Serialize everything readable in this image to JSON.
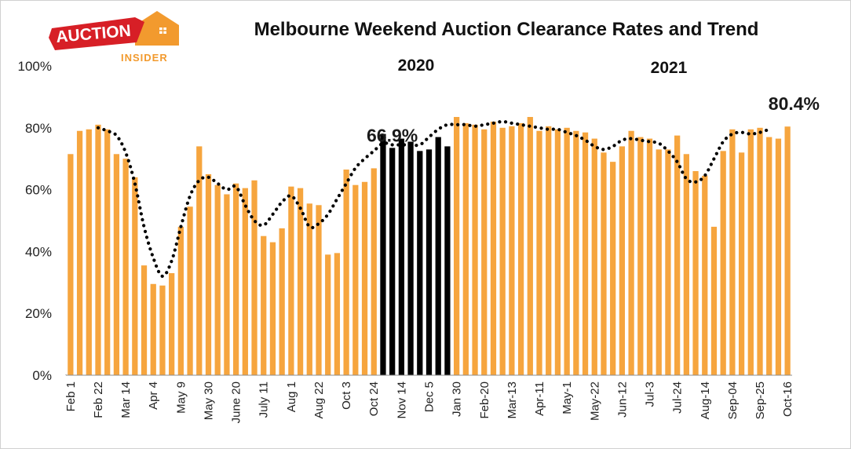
{
  "logo": {
    "word1": "AUCTION",
    "word2": "INSIDER"
  },
  "chart_data": {
    "type": "bar+line",
    "title": "Melbourne Weekend Auction Clearance Rates and Trend",
    "year_labels": [
      "2020",
      "2021"
    ],
    "ylim": [
      0,
      100
    ],
    "yticks": [
      0,
      20,
      40,
      60,
      80,
      100
    ],
    "ytick_labels": [
      "0%",
      "20%",
      "40%",
      "60%",
      "80%",
      "100%"
    ],
    "grid": false,
    "x_tick_labels": [
      {
        "i": 0,
        "label": "Feb 1"
      },
      {
        "i": 3,
        "label": "Feb 22"
      },
      {
        "i": 6,
        "label": "Mar 14"
      },
      {
        "i": 9,
        "label": "Apr 4"
      },
      {
        "i": 12,
        "label": "May 9"
      },
      {
        "i": 15,
        "label": "May 30"
      },
      {
        "i": 18,
        "label": "June 20"
      },
      {
        "i": 21,
        "label": "July 11"
      },
      {
        "i": 24,
        "label": "Aug 1"
      },
      {
        "i": 27,
        "label": "Aug 22"
      },
      {
        "i": 30,
        "label": "Oct 3"
      },
      {
        "i": 33,
        "label": "Oct 24"
      },
      {
        "i": 36,
        "label": "Nov 14"
      },
      {
        "i": 39,
        "label": "Dec 5"
      },
      {
        "i": 42,
        "label": "Jan 30"
      },
      {
        "i": 45,
        "label": "Feb-20"
      },
      {
        "i": 48,
        "label": "Mar-13"
      },
      {
        "i": 51,
        "label": "Apr-11"
      },
      {
        "i": 54,
        "label": "May-1"
      },
      {
        "i": 57,
        "label": "May-22"
      },
      {
        "i": 60,
        "label": "Jun-12"
      },
      {
        "i": 63,
        "label": "Jul-3"
      },
      {
        "i": 66,
        "label": "Jul-24"
      },
      {
        "i": 69,
        "label": "Aug-14"
      },
      {
        "i": 72,
        "label": "Sep-04"
      },
      {
        "i": 75,
        "label": "Sep-25"
      },
      {
        "i": 78,
        "label": "Oct-16"
      }
    ],
    "series": [
      {
        "name": "Clearance rate",
        "style": "bar",
        "colors": {
          "default": "#F6A53E",
          "highlight": "#000000"
        },
        "highlight_range": [
          34,
          41
        ],
        "values": [
          71.5,
          79,
          79.5,
          81,
          79.5,
          71.5,
          70,
          64,
          35.5,
          29.5,
          29,
          33,
          48,
          54.5,
          74,
          65,
          61.5,
          58.5,
          62,
          60.5,
          63,
          45,
          43,
          47.5,
          61,
          60.5,
          55.5,
          55,
          39,
          39.5,
          66.5,
          61.5,
          62.5,
          66.9,
          78,
          73.5,
          76.5,
          75.5,
          72.5,
          73,
          77,
          74,
          83.5,
          81.5,
          81,
          79.5,
          82,
          80,
          80.5,
          81.5,
          83.5,
          79,
          80.5,
          79.5,
          80,
          79,
          78.5,
          76.5,
          72,
          69,
          74,
          79,
          77,
          76.5,
          73,
          73,
          77.5,
          71.5,
          66,
          64.5,
          48,
          72.5,
          79.5,
          72,
          79.5,
          80,
          77,
          76.5,
          80.4
        ]
      },
      {
        "name": "Trend",
        "style": "dotted-line",
        "color": "#000000",
        "x_start_index": 3,
        "values": [
          80,
          79,
          77.5,
          72,
          62,
          48,
          38,
          32,
          37,
          48,
          58,
          63,
          64,
          62,
          60,
          61,
          55,
          50,
          48.5,
          52,
          56,
          58,
          54,
          48,
          49,
          52,
          57,
          62,
          67,
          70,
          72.5,
          75,
          74.5,
          74.5,
          74.5,
          74.5,
          77,
          79.5,
          81,
          81,
          81,
          80.5,
          81,
          81.5,
          82,
          81.5,
          81,
          80.5,
          80,
          79.5,
          79.5,
          78.5,
          77.5,
          76,
          74,
          73,
          74,
          76,
          76.5,
          76,
          75.5,
          75,
          72.5,
          69,
          63.5,
          62.5,
          64.5,
          70,
          75.5,
          78,
          78.5,
          78,
          78.5,
          79.5
        ]
      }
    ],
    "annotations": [
      {
        "text": "66.9%",
        "at_index": 33,
        "value": 66.9
      },
      {
        "text": "80.4%",
        "at_index": 79,
        "value": 80.4
      }
    ]
  }
}
